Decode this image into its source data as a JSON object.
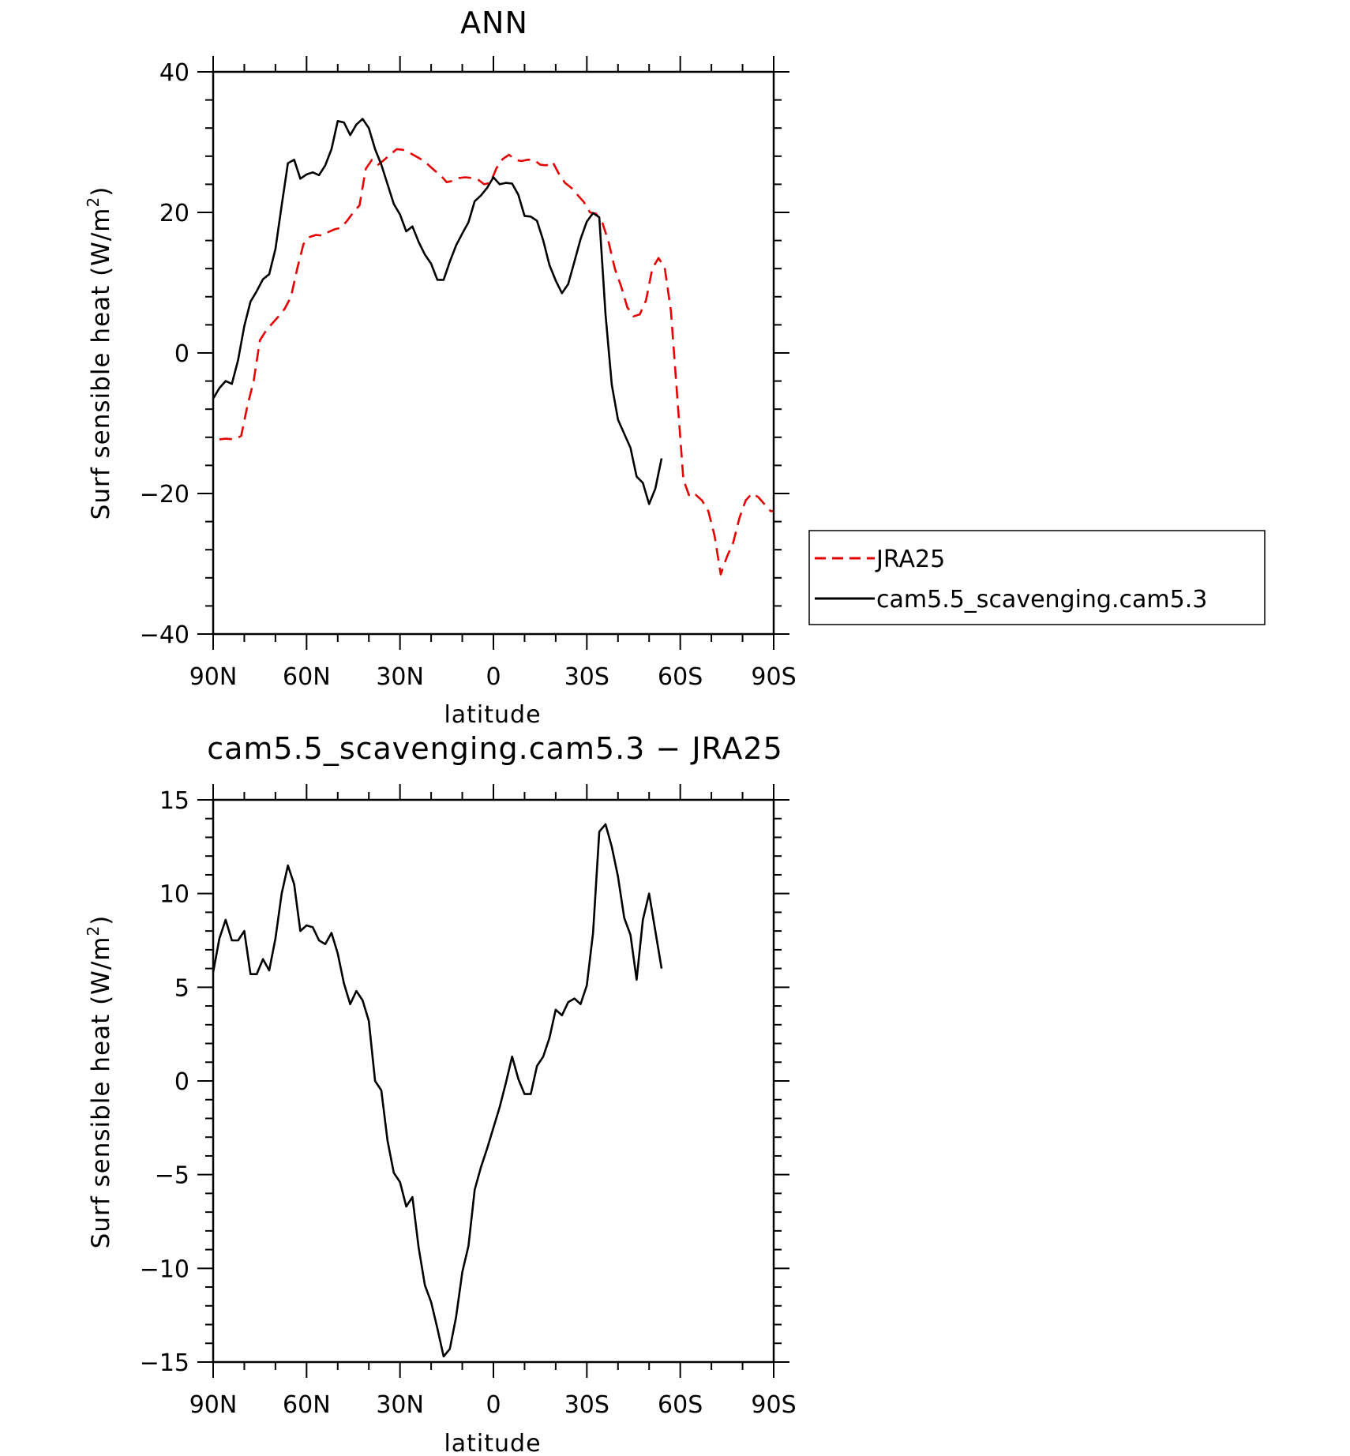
{
  "chart_data": [
    {
      "type": "line",
      "title": "ANN",
      "xlabel": "latitude",
      "ylabel": "Surf sensible heat (W/m",
      "ylabel_superscript": "2",
      "ylabel_suffix": ")",
      "xlim": [
        90,
        -90
      ],
      "ylim": [
        -40,
        40
      ],
      "xticks": [
        90,
        60,
        30,
        0,
        -30,
        -60,
        -90
      ],
      "xtick_labels": [
        "90N",
        "60N",
        "30N",
        "0",
        "30S",
        "60S",
        "90S"
      ],
      "yticks": [
        -40,
        -20,
        0,
        20,
        40
      ],
      "ytick_labels": [
        "−40",
        "−20",
        "0",
        "20",
        "40"
      ],
      "legend": "right",
      "grid": false,
      "series": [
        {
          "name": "JRA25",
          "color": "#e60000",
          "dash": true,
          "points": [
            [
              88,
              -12.3
            ],
            [
              86,
              -12.2
            ],
            [
              83,
              -12.3
            ],
            [
              81,
              -11.8
            ],
            [
              79,
              -7.5
            ],
            [
              77,
              -4
            ],
            [
              75,
              1.8
            ],
            [
              73,
              3.2
            ],
            [
              71,
              4.2
            ],
            [
              69,
              5.2
            ],
            [
              67,
              6.3
            ],
            [
              65,
              8
            ],
            [
              63,
              12
            ],
            [
              61,
              15.5
            ],
            [
              59,
              16.5
            ],
            [
              57,
              16.8
            ],
            [
              55,
              16.7
            ],
            [
              53,
              17.2
            ],
            [
              51,
              17.6
            ],
            [
              49,
              17.8
            ],
            [
              47,
              18.8
            ],
            [
              45,
              20
            ],
            [
              43,
              21
            ],
            [
              41,
              26.2
            ],
            [
              39,
              27.5
            ],
            [
              37,
              26.8
            ],
            [
              35,
              27.5
            ],
            [
              33,
              28.3
            ],
            [
              31,
              29
            ],
            [
              29,
              28.9
            ],
            [
              27,
              28.5
            ],
            [
              25,
              28
            ],
            [
              23,
              27.5
            ],
            [
              21,
              26.8
            ],
            [
              19,
              26
            ],
            [
              17,
              25.3
            ],
            [
              15,
              24.3
            ],
            [
              13,
              24.5
            ],
            [
              11,
              24.9
            ],
            [
              9,
              25
            ],
            [
              7,
              24.9
            ],
            [
              5,
              24.7
            ],
            [
              3,
              24
            ],
            [
              1,
              24.2
            ],
            [
              -1,
              26.3
            ],
            [
              -3,
              27.6
            ],
            [
              -5,
              28.2
            ],
            [
              -7,
              27.5
            ],
            [
              -9,
              27.3
            ],
            [
              -11,
              27.5
            ],
            [
              -13,
              27.5
            ],
            [
              -15,
              26.8
            ],
            [
              -17,
              26.7
            ],
            [
              -19,
              27.2
            ],
            [
              -21,
              25.5
            ],
            [
              -23,
              24.2
            ],
            [
              -25,
              23.5
            ],
            [
              -27,
              22.5
            ],
            [
              -29,
              21.5
            ],
            [
              -31,
              20
            ],
            [
              -33,
              19.8
            ],
            [
              -35,
              18.5
            ],
            [
              -37,
              15.8
            ],
            [
              -39,
              12
            ],
            [
              -41,
              9.5
            ],
            [
              -43,
              6.5
            ],
            [
              -45,
              5.2
            ],
            [
              -47,
              5.5
            ],
            [
              -49,
              7.5
            ],
            [
              -51,
              12
            ],
            [
              -53,
              13.5
            ],
            [
              -55,
              12.2
            ],
            [
              -57,
              6
            ],
            [
              -59,
              -6
            ],
            [
              -61,
              -18
            ],
            [
              -63,
              -20.5
            ],
            [
              -65,
              -20.2
            ],
            [
              -67,
              -21
            ],
            [
              -69,
              -22.5
            ],
            [
              -71,
              -26
            ],
            [
              -73,
              -31.5
            ],
            [
              -75,
              -29
            ],
            [
              -77,
              -27
            ],
            [
              -79,
              -23.5
            ],
            [
              -81,
              -21
            ],
            [
              -83,
              -20
            ],
            [
              -85,
              -20.5
            ],
            [
              -87,
              -21.5
            ],
            [
              -89,
              -22.5
            ],
            [
              -90,
              -22.5
            ]
          ]
        },
        {
          "name": "cam5.5_scavenging.cam5.3",
          "color": "#000000",
          "dash": false,
          "points": [
            [
              90,
              -6.5
            ],
            [
              88,
              -5
            ],
            [
              86,
              -4
            ],
            [
              84,
              -4.4
            ],
            [
              82,
              -1
            ],
            [
              80,
              3.8
            ],
            [
              78,
              7.3
            ],
            [
              76,
              8.8
            ],
            [
              74,
              10.5
            ],
            [
              72,
              11.2
            ],
            [
              70,
              14.8
            ],
            [
              68,
              21
            ],
            [
              66,
              27
            ],
            [
              64,
              27.5
            ],
            [
              62,
              24.8
            ],
            [
              60,
              25.4
            ],
            [
              58,
              25.7
            ],
            [
              56,
              25.3
            ],
            [
              54,
              26.7
            ],
            [
              52,
              29
            ],
            [
              50,
              33
            ],
            [
              48,
              32.8
            ],
            [
              46,
              31
            ],
            [
              44,
              32.5
            ],
            [
              42,
              33.3
            ],
            [
              40,
              32
            ],
            [
              38,
              29
            ],
            [
              36,
              26.8
            ],
            [
              34,
              24
            ],
            [
              32,
              21.2
            ],
            [
              30,
              19.7
            ],
            [
              28,
              17.3
            ],
            [
              26,
              18
            ],
            [
              24,
              15.8
            ],
            [
              22,
              14
            ],
            [
              20,
              12.7
            ],
            [
              18,
              10.4
            ],
            [
              16,
              10.4
            ],
            [
              14,
              13
            ],
            [
              12,
              15.3
            ],
            [
              10,
              17
            ],
            [
              8,
              18.6
            ],
            [
              6,
              21.6
            ],
            [
              4,
              22.4
            ],
            [
              2,
              23.5
            ],
            [
              0,
              25
            ],
            [
              -2,
              24
            ],
            [
              -4,
              24.2
            ],
            [
              -6,
              24.1
            ],
            [
              -8,
              22.5
            ],
            [
              -10,
              19.5
            ],
            [
              -12,
              19.4
            ],
            [
              -14,
              18.8
            ],
            [
              -16,
              16
            ],
            [
              -18,
              12.5
            ],
            [
              -20,
              10.3
            ],
            [
              -22,
              8.5
            ],
            [
              -24,
              9.8
            ],
            [
              -26,
              13
            ],
            [
              -28,
              16.2
            ],
            [
              -30,
              18.7
            ],
            [
              -32,
              19.9
            ],
            [
              -34,
              19.3
            ],
            [
              -36,
              5.5
            ],
            [
              -38,
              -4.5
            ],
            [
              -40,
              -9.5
            ],
            [
              -42,
              -11.5
            ],
            [
              -44,
              -13.5
            ],
            [
              -46,
              -17.6
            ],
            [
              -48,
              -18.5
            ],
            [
              -50,
              -21.5
            ],
            [
              -52,
              -19.3
            ],
            [
              -54,
              -15
            ]
          ]
        }
      ]
    },
    {
      "type": "line",
      "title": "cam5.5_scavenging.cam5.3 − JRA25",
      "xlabel": "latitude",
      "ylabel": "Surf sensible heat (W/m",
      "ylabel_superscript": "2",
      "ylabel_suffix": ")",
      "xlim": [
        90,
        -90
      ],
      "ylim": [
        -15,
        15
      ],
      "xticks": [
        90,
        60,
        30,
        0,
        -30,
        -60,
        -90
      ],
      "xtick_labels": [
        "90N",
        "60N",
        "30N",
        "0",
        "30S",
        "60S",
        "90S"
      ],
      "yticks": [
        -15,
        -10,
        -5,
        0,
        5,
        10,
        15
      ],
      "ytick_labels": [
        "−15",
        "−10",
        "−5",
        "0",
        "5",
        "10",
        "15"
      ],
      "grid": false,
      "series": [
        {
          "color": "#000000",
          "dash": false,
          "points": [
            [
              90,
              5.8
            ],
            [
              88,
              7.6
            ],
            [
              86,
              8.6
            ],
            [
              84,
              7.5
            ],
            [
              82,
              7.5
            ],
            [
              80,
              8
            ],
            [
              78,
              5.7
            ],
            [
              76,
              5.7
            ],
            [
              74,
              6.5
            ],
            [
              72,
              5.9
            ],
            [
              70,
              7.6
            ],
            [
              68,
              10
            ],
            [
              66,
              11.5
            ],
            [
              64,
              10.5
            ],
            [
              62,
              8
            ],
            [
              60,
              8.3
            ],
            [
              58,
              8.2
            ],
            [
              56,
              7.5
            ],
            [
              54,
              7.3
            ],
            [
              52,
              7.9
            ],
            [
              50,
              6.8
            ],
            [
              48,
              5.2
            ],
            [
              46,
              4.1
            ],
            [
              44,
              4.8
            ],
            [
              42,
              4.3
            ],
            [
              40,
              3.2
            ],
            [
              38,
              0
            ],
            [
              36,
              -0.5
            ],
            [
              34,
              -3.2
            ],
            [
              32,
              -4.9
            ],
            [
              30,
              -5.4
            ],
            [
              28,
              -6.7
            ],
            [
              26,
              -6.2
            ],
            [
              24,
              -8.9
            ],
            [
              22,
              -10.9
            ],
            [
              20,
              -11.8
            ],
            [
              18,
              -13.2
            ],
            [
              16,
              -14.7
            ],
            [
              14,
              -14.3
            ],
            [
              12,
              -12.6
            ],
            [
              10,
              -10.2
            ],
            [
              8,
              -8.8
            ],
            [
              6,
              -5.8
            ],
            [
              4,
              -4.6
            ],
            [
              2,
              -3.6
            ],
            [
              0,
              -2.5
            ],
            [
              -2,
              -1.4
            ],
            [
              -4,
              -0.1
            ],
            [
              -6,
              1.3
            ],
            [
              -8,
              0.1
            ],
            [
              -10,
              -0.7
            ],
            [
              -12,
              -0.7
            ],
            [
              -14,
              0.8
            ],
            [
              -16,
              1.3
            ],
            [
              -18,
              2.3
            ],
            [
              -20,
              3.8
            ],
            [
              -22,
              3.5
            ],
            [
              -24,
              4.2
            ],
            [
              -26,
              4.4
            ],
            [
              -28,
              4.1
            ],
            [
              -30,
              5.1
            ],
            [
              -32,
              7.9
            ],
            [
              -34,
              13.3
            ],
            [
              -36,
              13.7
            ],
            [
              -38,
              12.5
            ],
            [
              -40,
              10.9
            ],
            [
              -42,
              8.7
            ],
            [
              -44,
              7.8
            ],
            [
              -46,
              5.4
            ],
            [
              -48,
              8.6
            ],
            [
              -50,
              10
            ],
            [
              -52,
              8
            ],
            [
              -54,
              6
            ]
          ]
        }
      ]
    }
  ]
}
